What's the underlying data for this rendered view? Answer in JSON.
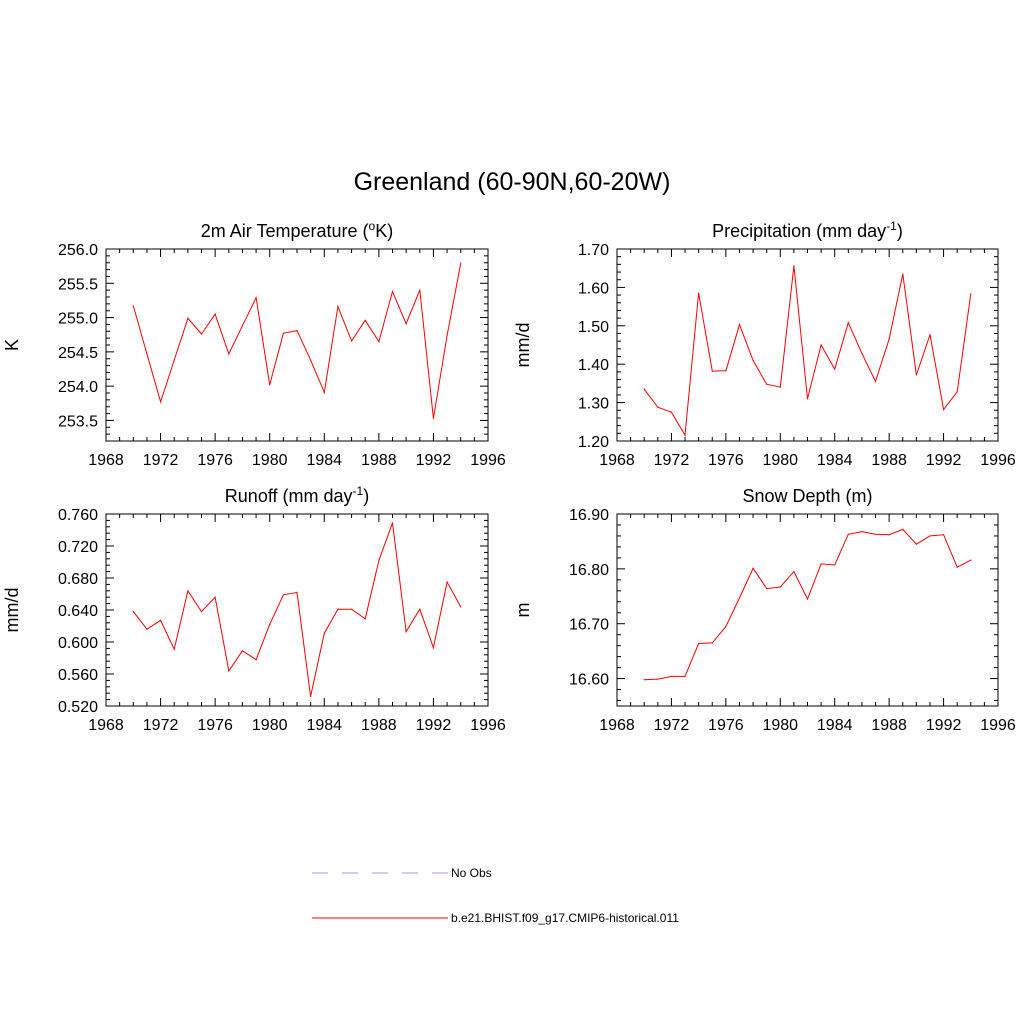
{
  "title": "Greenland (60-90N,60-20W)",
  "chart_data": [
    {
      "type": "line",
      "title": "2m Air Temperature (",
      "title_sup": "o",
      "title_tail": "K)",
      "ylabel": "K",
      "xlim": [
        1968,
        1996
      ],
      "ylim": [
        253.2,
        256.0
      ],
      "xticks": [
        "1968",
        "1972",
        "1976",
        "1980",
        "1984",
        "1988",
        "1992",
        "1996"
      ],
      "yticks": [
        "253.5",
        "254.0",
        "254.5",
        "255.0",
        "255.5",
        "256.0"
      ],
      "grid": false,
      "series": [
        {
          "color": "#ff0000",
          "x": [
            1970,
            1971,
            1972,
            1973,
            1974,
            1975,
            1976,
            1977,
            1978,
            1979,
            1980,
            1981,
            1982,
            1983,
            1984,
            1985,
            1986,
            1987,
            1988,
            1989,
            1990,
            1991,
            1992,
            1993,
            1994
          ],
          "y": [
            255.17,
            254.47,
            253.77,
            254.38,
            254.99,
            254.76,
            255.05,
            254.47,
            254.88,
            255.29,
            254.02,
            254.77,
            254.81,
            254.38,
            253.91,
            255.16,
            254.66,
            254.96,
            254.65,
            255.38,
            254.91,
            255.4,
            253.53,
            254.74,
            255.79
          ]
        }
      ]
    },
    {
      "type": "line",
      "title": "Precipitation (mm day",
      "title_sup": "-1",
      "title_tail": ")",
      "ylabel": "mm/d",
      "xlim": [
        1968,
        1996
      ],
      "ylim": [
        1.2,
        1.7
      ],
      "xticks": [
        "1968",
        "1972",
        "1976",
        "1980",
        "1984",
        "1988",
        "1992",
        "1996"
      ],
      "yticks": [
        "1.20",
        "1.30",
        "1.40",
        "1.50",
        "1.60",
        "1.70"
      ],
      "grid": false,
      "series": [
        {
          "color": "#ff0000",
          "x": [
            1970,
            1971,
            1972,
            1973,
            1974,
            1975,
            1976,
            1977,
            1978,
            1979,
            1980,
            1981,
            1982,
            1983,
            1984,
            1985,
            1986,
            1987,
            1988,
            1989,
            1990,
            1991,
            1992,
            1993,
            1994
          ],
          "y": [
            1.335,
            1.288,
            1.275,
            1.215,
            1.585,
            1.382,
            1.383,
            1.503,
            1.41,
            1.348,
            1.34,
            1.656,
            1.31,
            1.45,
            1.387,
            1.508,
            1.428,
            1.355,
            1.465,
            1.635,
            1.372,
            1.477,
            1.282,
            1.328,
            1.583
          ]
        }
      ]
    },
    {
      "type": "line",
      "title": "Runoff (mm day",
      "title_sup": "-1",
      "title_tail": ")",
      "ylabel": "mm/d",
      "xlim": [
        1968,
        1996
      ],
      "ylim": [
        0.52,
        0.76
      ],
      "xticks": [
        "1968",
        "1972",
        "1976",
        "1980",
        "1984",
        "1988",
        "1992",
        "1996"
      ],
      "yticks": [
        "0.520",
        "0.560",
        "0.600",
        "0.640",
        "0.680",
        "0.720",
        "0.760"
      ],
      "grid": false,
      "series": [
        {
          "color": "#ff0000",
          "x": [
            1970,
            1971,
            1972,
            1973,
            1974,
            1975,
            1976,
            1977,
            1978,
            1979,
            1980,
            1981,
            1982,
            1983,
            1984,
            1985,
            1986,
            1987,
            1988,
            1989,
            1990,
            1991,
            1992,
            1993,
            1994
          ],
          "y": [
            0.638,
            0.616,
            0.627,
            0.591,
            0.664,
            0.638,
            0.656,
            0.564,
            0.589,
            0.578,
            0.622,
            0.659,
            0.662,
            0.532,
            0.611,
            0.641,
            0.641,
            0.629,
            0.702,
            0.749,
            0.613,
            0.641,
            0.593,
            0.675,
            0.644
          ]
        }
      ]
    },
    {
      "type": "line",
      "title": "Snow Depth (m)",
      "title_sup": "",
      "title_tail": "",
      "ylabel": "m",
      "xlim": [
        1968,
        1996
      ],
      "ylim": [
        16.55,
        16.9
      ],
      "xticks": [
        "1968",
        "1972",
        "1976",
        "1980",
        "1984",
        "1988",
        "1992",
        "1996"
      ],
      "yticks": [
        "16.60",
        "16.70",
        "16.80",
        "16.90"
      ],
      "grid": false,
      "series": [
        {
          "color": "#ff0000",
          "x": [
            1970,
            1971,
            1972,
            1973,
            1974,
            1975,
            1976,
            1977,
            1978,
            1979,
            1980,
            1981,
            1982,
            1983,
            1984,
            1985,
            1986,
            1987,
            1988,
            1989,
            1990,
            1991,
            1992,
            1993,
            1994
          ],
          "y": [
            16.598,
            16.599,
            16.604,
            16.604,
            16.664,
            16.665,
            16.695,
            16.747,
            16.801,
            16.764,
            16.767,
            16.795,
            16.745,
            16.809,
            16.807,
            16.863,
            16.868,
            16.863,
            16.862,
            16.872,
            16.845,
            16.86,
            16.862,
            16.803,
            16.816
          ]
        }
      ]
    }
  ],
  "legend": [
    {
      "label": "No Obs",
      "color": "#9999ff",
      "style": "dashed"
    },
    {
      "label": "b.e21.BHIST.f09_g17.CMIP6-historical.011",
      "color": "#ff0000",
      "style": "solid"
    }
  ]
}
